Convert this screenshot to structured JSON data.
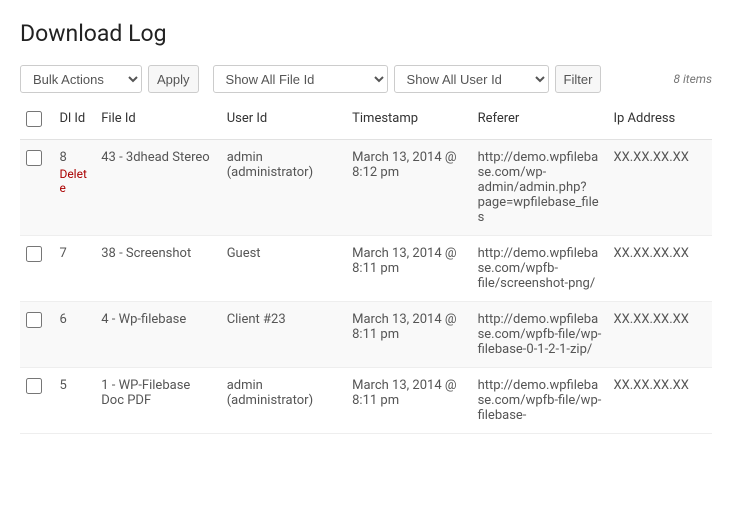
{
  "page_title": "Download Log",
  "bulk": {
    "placeholder": "Bulk Actions",
    "apply": "Apply"
  },
  "filters": {
    "file": "Show All File Id",
    "user": "Show All User Id",
    "button": "Filter"
  },
  "items_count": "8 items",
  "columns": {
    "dl_id": "Dl Id",
    "file_id": "File Id",
    "user_id": "User Id",
    "timestamp": "Timestamp",
    "referer": "Referer",
    "ip": "Ip Address"
  },
  "rows": [
    {
      "id": "8",
      "delete": "Delete",
      "file": "43 - 3dhead Stereo",
      "user": "admin (administrator)",
      "timestamp": "March 13, 2014 @ 8:12 pm",
      "referer": "http://demo.wpfilebase.com/wp-admin/admin.php?page=wpfilebase_files",
      "ip": "XX.XX.XX.XX"
    },
    {
      "id": "7",
      "file": "38 - Screenshot",
      "user": "Guest",
      "timestamp": "March 13, 2014 @ 8:11 pm",
      "referer": "http://demo.wpfilebase.com/wpfb-file/screenshot-png/",
      "ip": "XX.XX.XX.XX"
    },
    {
      "id": "6",
      "file": "4 - Wp-filebase",
      "user": "Client #23",
      "timestamp": "March 13, 2014 @ 8:11 pm",
      "referer": "http://demo.wpfilebase.com/wpfb-file/wp-filebase-0-1-2-1-zip/",
      "ip": "XX.XX.XX.XX"
    },
    {
      "id": "5",
      "file": "1 - WP-Filebase Doc PDF",
      "user": "admin (administrator)",
      "timestamp": "March 13, 2014 @ 8:11 pm",
      "referer": "http://demo.wpfilebase.com/wpfb-file/wp-filebase-",
      "ip": "XX.XX.XX.XX"
    }
  ]
}
